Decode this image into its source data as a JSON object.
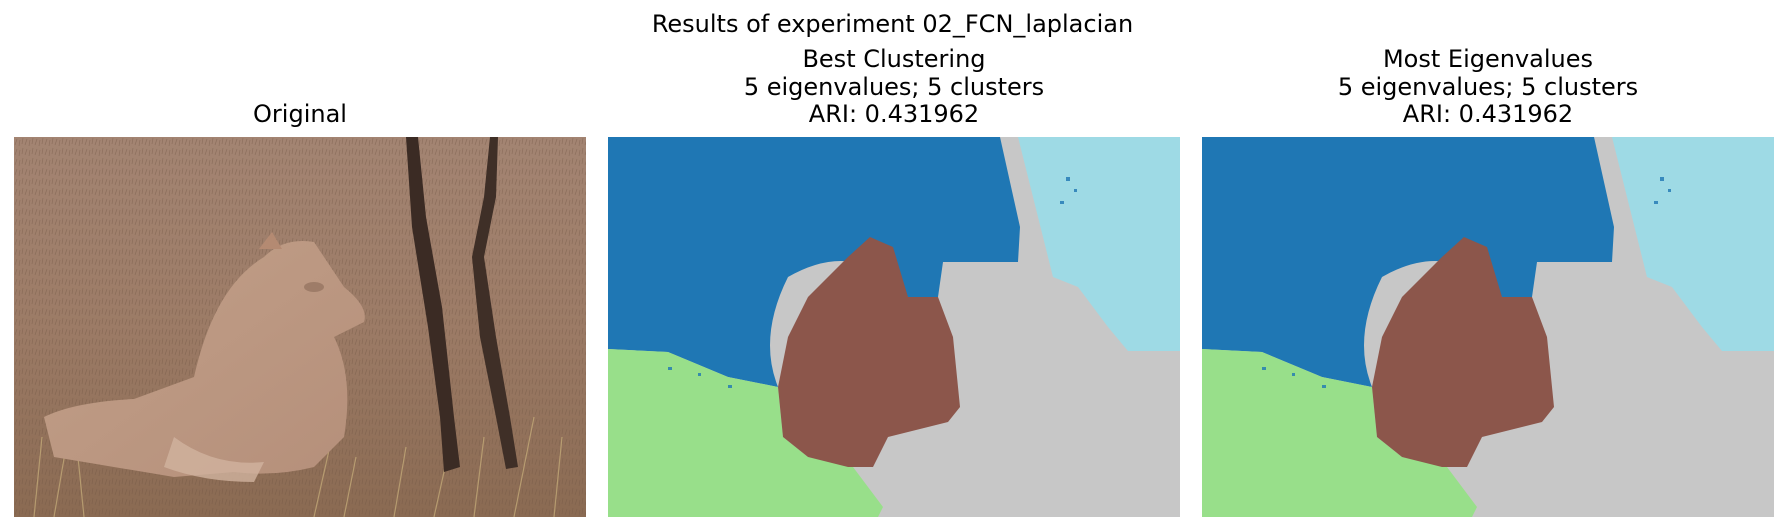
{
  "figure": {
    "suptitle": "Results of experiment 02_FCN_laplacian"
  },
  "panels": [
    {
      "title_lines": [
        "Original"
      ],
      "content": "photograph"
    },
    {
      "title_lines": [
        "Best Clustering",
        "5 eigenvalues; 5 clusters",
        "ARI: 0.431962"
      ],
      "content": "segmentation"
    },
    {
      "title_lines": [
        "Most Eigenvalues",
        "5 eigenvalues; 5 clusters",
        "ARI: 0.431962"
      ],
      "content": "segmentation"
    }
  ],
  "colors": {
    "cluster_blue": "#1f77b4",
    "cluster_lightblue": "#9edae5",
    "cluster_green": "#98df8a",
    "cluster_brown": "#8c564b",
    "cluster_gray": "#c7c7c7"
  }
}
